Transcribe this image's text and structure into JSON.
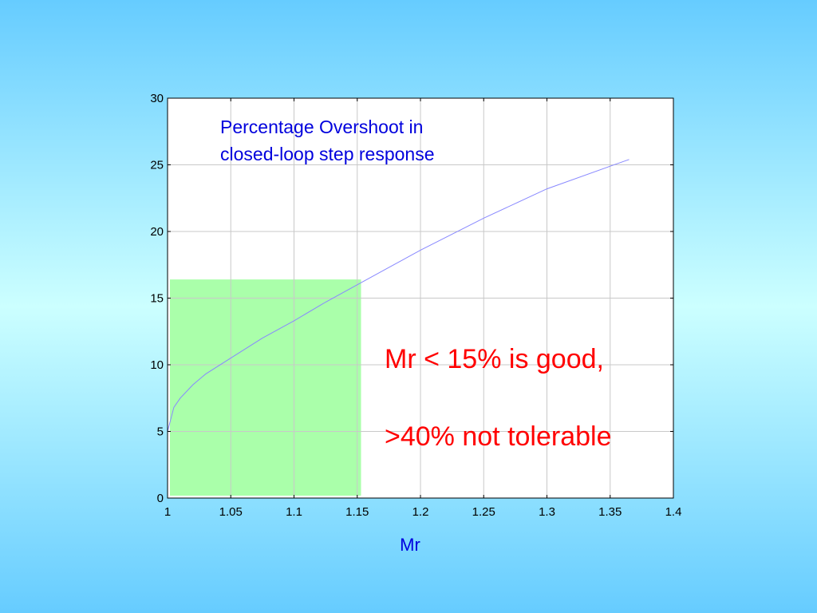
{
  "chart_data": {
    "type": "line",
    "title": "",
    "xlabel": "Mr",
    "ylabel": "",
    "xlim": [
      1,
      1.4
    ],
    "ylim": [
      0,
      30
    ],
    "xticks": [
      1,
      1.05,
      1.1,
      1.15,
      1.2,
      1.25,
      1.3,
      1.35,
      1.4
    ],
    "yticks": [
      0,
      5,
      10,
      15,
      20,
      25,
      30
    ],
    "xtick_labels": [
      "1",
      "1.05",
      "1.1",
      "1.15",
      "1.2",
      "1.25",
      "1.3",
      "1.35",
      "1.4"
    ],
    "ytick_labels": [
      "0",
      "5",
      "10",
      "15",
      "20",
      "25",
      "30"
    ],
    "grid": true,
    "series": [
      {
        "color": "#8888ff",
        "x": [
          1.0,
          1.005,
          1.01,
          1.02,
          1.03,
          1.05,
          1.075,
          1.1,
          1.125,
          1.15,
          1.175,
          1.2,
          1.25,
          1.3,
          1.35,
          1.365
        ],
        "y": [
          5.0,
          6.8,
          7.5,
          8.5,
          9.3,
          10.5,
          12.0,
          13.3,
          14.7,
          16.0,
          17.3,
          18.6,
          21.0,
          23.2,
          24.9,
          25.4
        ]
      }
    ],
    "highlight_region": {
      "x": [
        1.0,
        1.153
      ],
      "y": [
        0,
        16.4
      ],
      "color": "#aaffaa"
    },
    "annotations": [
      {
        "lines": [
          "Percentage Overshoot in",
          "closed-loop step response"
        ],
        "color": "#0000dd"
      },
      {
        "lines": [
          "Mr < 15% is good,",
          ">40% not tolerable"
        ],
        "color": "#ff0000"
      }
    ]
  }
}
